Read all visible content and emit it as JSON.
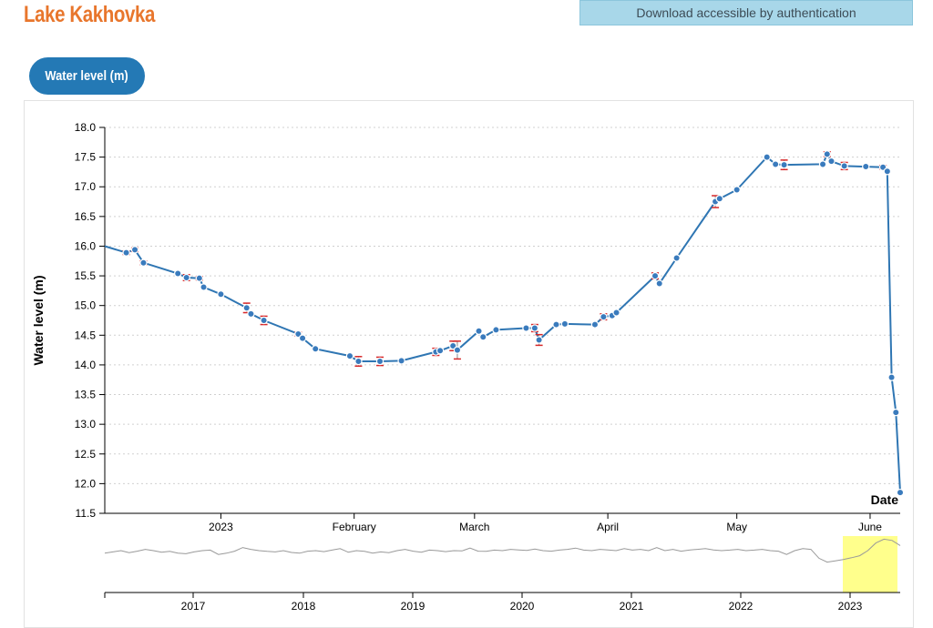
{
  "header": {
    "title": "Lake Kakhovka",
    "download_label": "Download accessible by authentication"
  },
  "tabs": [
    {
      "label": "Water level (m)",
      "active": true
    }
  ],
  "colors": {
    "title": "#e8762c",
    "banner": "#a8d7e9",
    "tab": "#2479b5",
    "series_line": "#2f76b3",
    "marker": "#3a7bbd",
    "error_bar": "#d62728",
    "overview_line": "#999999",
    "brush": "#ffff66"
  },
  "chart_data": [
    {
      "type": "line",
      "ylabel": "Water level (m)",
      "xlabel": "Date",
      "ylim": [
        11.5,
        18.0
      ],
      "xlim": [
        "2022-12-05",
        "2023-06-08"
      ],
      "y_ticks": [
        "11.5",
        "12.0",
        "12.5",
        "13.0",
        "13.5",
        "14.0",
        "14.5",
        "15.0",
        "15.5",
        "16.0",
        "16.5",
        "17.0",
        "17.5",
        "18.0"
      ],
      "x_ticks": [
        {
          "label": "2023",
          "date": "2023-01-01"
        },
        {
          "label": "February",
          "date": "2023-02-01"
        },
        {
          "label": "March",
          "date": "2023-03-01"
        },
        {
          "label": "April",
          "date": "2023-04-01"
        },
        {
          "label": "May",
          "date": "2023-05-01"
        },
        {
          "label": "June",
          "date": "2023-06-01"
        }
      ],
      "grid": true,
      "series": [
        {
          "points": [
            {
              "date": "2022-12-05",
              "y": 16.0
            },
            {
              "date": "2022-12-10",
              "y": 15.89,
              "err": 0.03
            },
            {
              "date": "2022-12-12",
              "y": 15.94,
              "err": 0.03
            },
            {
              "date": "2022-12-14",
              "y": 15.72,
              "err": 0.03
            },
            {
              "date": "2022-12-22",
              "y": 15.54
            },
            {
              "date": "2022-12-24",
              "y": 15.47,
              "err": 0.05
            },
            {
              "date": "2022-12-27",
              "y": 15.46,
              "err": 0.03
            },
            {
              "date": "2022-12-28",
              "y": 15.31
            },
            {
              "date": "2023-01-01",
              "y": 15.19
            },
            {
              "date": "2023-01-07",
              "y": 14.96,
              "err": 0.08
            },
            {
              "date": "2023-01-08",
              "y": 14.86
            },
            {
              "date": "2023-01-11",
              "y": 14.75,
              "err": 0.07
            },
            {
              "date": "2023-01-19",
              "y": 14.52,
              "err": 0.03
            },
            {
              "date": "2023-01-20",
              "y": 14.45
            },
            {
              "date": "2023-01-23",
              "y": 14.27
            },
            {
              "date": "2023-01-31",
              "y": 14.15
            },
            {
              "date": "2023-02-02",
              "y": 14.06,
              "err": 0.08
            },
            {
              "date": "2023-02-07",
              "y": 14.06,
              "err": 0.07
            },
            {
              "date": "2023-02-12",
              "y": 14.07
            },
            {
              "date": "2023-02-20",
              "y": 14.22,
              "err": 0.06
            },
            {
              "date": "2023-02-21",
              "y": 14.24
            },
            {
              "date": "2023-02-24",
              "y": 14.32,
              "err": 0.08
            },
            {
              "date": "2023-02-25",
              "y": 14.25,
              "err": 0.15
            },
            {
              "date": "2023-03-02",
              "y": 14.57
            },
            {
              "date": "2023-03-03",
              "y": 14.47
            },
            {
              "date": "2023-03-06",
              "y": 14.59
            },
            {
              "date": "2023-03-13",
              "y": 14.62
            },
            {
              "date": "2023-03-15",
              "y": 14.62,
              "err": 0.06
            },
            {
              "date": "2023-03-16",
              "y": 14.42,
              "err": 0.09
            },
            {
              "date": "2023-03-20",
              "y": 14.68
            },
            {
              "date": "2023-03-22",
              "y": 14.69
            },
            {
              "date": "2023-03-29",
              "y": 14.68
            },
            {
              "date": "2023-03-31",
              "y": 14.81,
              "err": 0.05
            },
            {
              "date": "2023-04-02",
              "y": 14.83
            },
            {
              "date": "2023-04-03",
              "y": 14.88
            },
            {
              "date": "2023-04-12",
              "y": 15.5,
              "err": 0.05
            },
            {
              "date": "2023-04-13",
              "y": 15.37
            },
            {
              "date": "2023-04-17",
              "y": 15.8
            },
            {
              "date": "2023-04-26",
              "y": 16.75,
              "err": 0.1
            },
            {
              "date": "2023-04-27",
              "y": 16.8
            },
            {
              "date": "2023-05-01",
              "y": 16.95
            },
            {
              "date": "2023-05-08",
              "y": 17.5
            },
            {
              "date": "2023-05-10",
              "y": 17.38
            },
            {
              "date": "2023-05-12",
              "y": 17.37,
              "err": 0.08
            },
            {
              "date": "2023-05-21",
              "y": 17.38
            },
            {
              "date": "2023-05-22",
              "y": 17.55,
              "err": 0.04
            },
            {
              "date": "2023-05-23",
              "y": 17.43
            },
            {
              "date": "2023-05-26",
              "y": 17.35,
              "err": 0.06
            },
            {
              "date": "2023-05-31",
              "y": 17.34
            },
            {
              "date": "2023-06-04",
              "y": 17.33,
              "err": 0.03
            },
            {
              "date": "2023-06-05",
              "y": 17.26
            },
            {
              "date": "2023-06-06",
              "y": 13.79
            },
            {
              "date": "2023-06-07",
              "y": 13.2
            },
            {
              "date": "2023-06-08",
              "y": 11.85
            }
          ]
        }
      ]
    },
    {
      "type": "line",
      "role": "overview",
      "x_ticks": [
        "2017",
        "2018",
        "2019",
        "2020",
        "2021",
        "2022",
        "2023"
      ],
      "brush_range": [
        "2022-12-05",
        "2023-06-08"
      ],
      "values": [
        0.4,
        0.45,
        0.5,
        0.42,
        0.48,
        0.55,
        0.5,
        0.44,
        0.47,
        0.4,
        0.38,
        0.45,
        0.5,
        0.52,
        0.35,
        0.4,
        0.48,
        0.62,
        0.55,
        0.5,
        0.47,
        0.45,
        0.5,
        0.43,
        0.4,
        0.48,
        0.5,
        0.46,
        0.52,
        0.58,
        0.44,
        0.5,
        0.47,
        0.4,
        0.45,
        0.42,
        0.5,
        0.55,
        0.48,
        0.44,
        0.52,
        0.5,
        0.46,
        0.5,
        0.49,
        0.6,
        0.48,
        0.47,
        0.52,
        0.5,
        0.55,
        0.53,
        0.51,
        0.56,
        0.5,
        0.48,
        0.52,
        0.55,
        0.6,
        0.52,
        0.5,
        0.55,
        0.53,
        0.5,
        0.58,
        0.52,
        0.55,
        0.5,
        0.62,
        0.5,
        0.55,
        0.48,
        0.52,
        0.55,
        0.58,
        0.53,
        0.5,
        0.52,
        0.55,
        0.5,
        0.52,
        0.55,
        0.5,
        0.48,
        0.35,
        0.5,
        0.58,
        0.55,
        0.2,
        0.05,
        0.1,
        0.15,
        0.22,
        0.3,
        0.5,
        0.8,
        0.95,
        0.9,
        0.7
      ]
    }
  ]
}
